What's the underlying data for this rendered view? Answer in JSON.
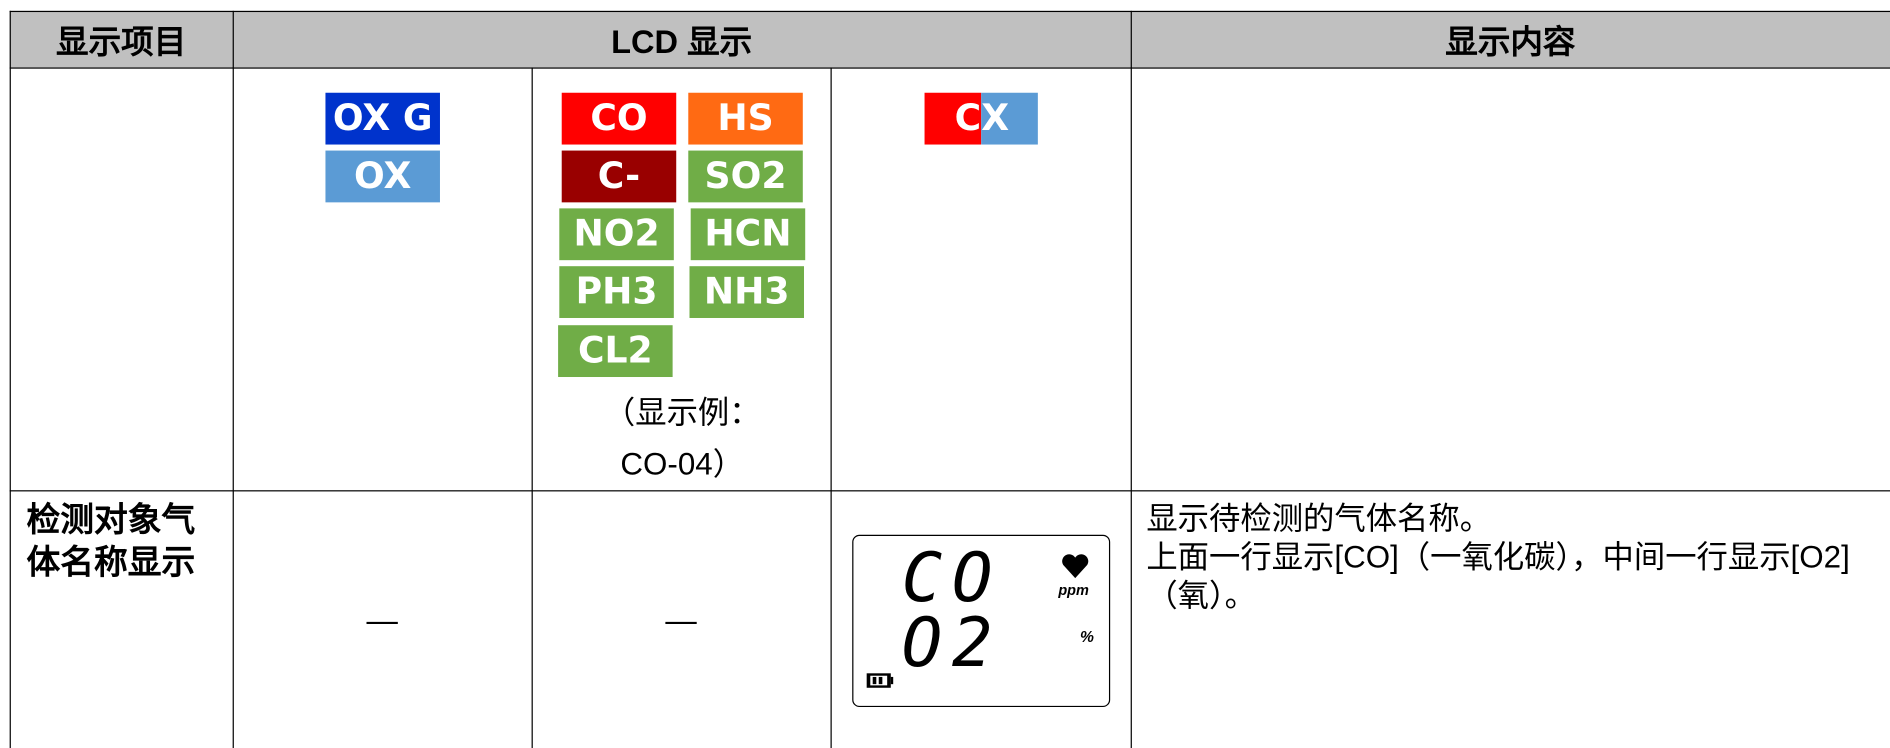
{
  "header": {
    "cells": [
      "显示项目",
      "LCD 显示",
      "显示内容"
    ]
  },
  "row1": {
    "col1_badges": [
      {
        "label": "OX G",
        "color": "#0033cc"
      },
      {
        "label": "OX",
        "color": "#5b9bd5"
      }
    ],
    "col2_badges": [
      {
        "label": "CO",
        "color": "#ff0000"
      },
      {
        "label": "HS",
        "color": "#ff6a13"
      },
      {
        "label": "C-",
        "color": "#990000"
      },
      {
        "label": "SO2",
        "color": "#70ad47"
      },
      {
        "label": "NO2",
        "color": "#70ad47"
      },
      {
        "label": "HCN",
        "color": "#70ad47"
      },
      {
        "label": "PH3",
        "color": "#70ad47"
      },
      {
        "label": "NH3",
        "color": "#70ad47"
      },
      {
        "label": "CL2",
        "color": "#70ad47"
      }
    ],
    "col2_note": [
      "（显示例：",
      "CO-04）"
    ],
    "col3_badge": {
      "parts": [
        {
          "label": "C",
          "color": "#ff0000"
        },
        {
          "label": "X",
          "color": "#5b9bd5"
        }
      ]
    }
  },
  "row2": {
    "label": "检测对象气体名称显示",
    "col1": "—",
    "col2": "—",
    "lcd": {
      "line1": "CO",
      "line2": "O2",
      "unit1": "ppm",
      "unit2": "%"
    },
    "description": [
      "显示待检测的气体名称。",
      "上面一行显示[CO]（一氧化碳），中间一行显示[O2]（氧）。"
    ]
  }
}
